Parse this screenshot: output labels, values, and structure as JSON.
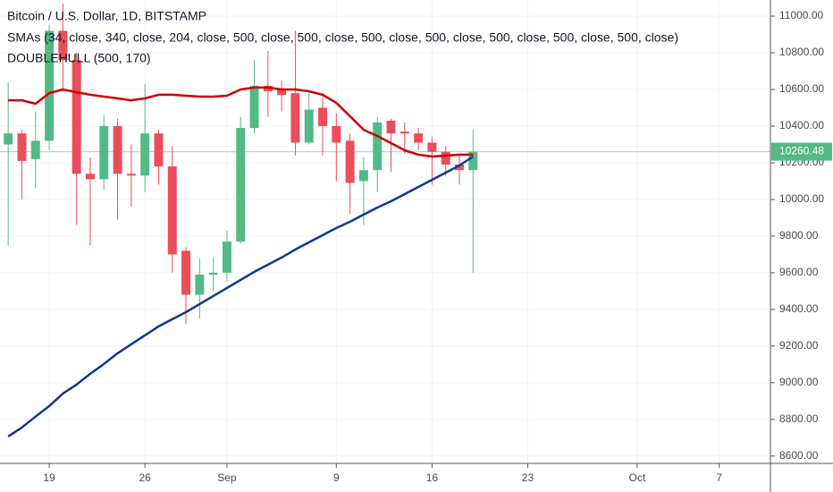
{
  "chart_data": {
    "type": "candlestick",
    "title": "Bitcoin / U.S. Dollar, 1D, BITSTAMP",
    "indicators": [
      "SMAs (34, close, 340, close, 204, close, 500, close, 500, close, 500, close, 500, close, 500, close, 500, close, 500, close)",
      "DOUBLEHULL (500, 170)"
    ],
    "x": [
      0,
      1,
      2,
      3,
      4,
      5,
      6,
      7,
      8,
      9,
      10,
      11,
      12,
      13,
      14,
      15,
      16,
      17,
      18,
      19,
      20,
      21,
      22,
      23,
      24,
      25,
      26,
      27,
      28,
      29,
      30,
      31,
      32,
      33,
      34
    ],
    "open": [
      10300,
      10360,
      10220,
      10320,
      10920,
      10760,
      10140,
      10110,
      10400,
      10140,
      10130,
      10360,
      10180,
      9720,
      9480,
      9590,
      9600,
      9770,
      10390,
      10620,
      10600,
      10580,
      10310,
      10500,
      10400,
      10320,
      10100,
      10160,
      10430,
      10370,
      10360,
      10310,
      10260,
      10190,
      10160
    ],
    "high": [
      10640,
      10380,
      10480,
      10950,
      11070,
      10800,
      10230,
      10460,
      10440,
      10300,
      10630,
      10380,
      10290,
      9740,
      9680,
      9680,
      9830,
      10450,
      10760,
      10810,
      10650,
      10920,
      10590,
      10580,
      10470,
      10360,
      10230,
      10450,
      10440,
      10420,
      10390,
      10340,
      10290,
      10240,
      10380
    ],
    "low": [
      9750,
      10000,
      10060,
      10270,
      10590,
      9860,
      9750,
      10050,
      9890,
      9960,
      10040,
      10080,
      9600,
      9320,
      9350,
      9500,
      9550,
      9760,
      10360,
      10450,
      10480,
      10240,
      10300,
      10240,
      10100,
      9920,
      9860,
      10040,
      10150,
      10250,
      10270,
      10080,
      10130,
      10080,
      9600
    ],
    "close": [
      10360,
      10210,
      10320,
      10920,
      10760,
      10140,
      10110,
      10400,
      10140,
      10130,
      10360,
      10180,
      9700,
      9480,
      9590,
      9600,
      9770,
      10390,
      10620,
      10590,
      10570,
      10310,
      10490,
      10400,
      10310,
      10090,
      10160,
      10420,
      10360,
      10360,
      10310,
      10260,
      10190,
      10160,
      10260.48
    ],
    "up_color": "#53b987",
    "down_color": "#eb4d5c",
    "series": [
      {
        "color": "#cc0000",
        "values": [
          10541,
          10541,
          10522,
          10580,
          10600,
          10585,
          10571,
          10561,
          10551,
          10541,
          10551,
          10571,
          10571,
          10566,
          10561,
          10561,
          10566,
          10600,
          10610,
          10610,
          10600,
          10600,
          10590,
          10571,
          10527,
          10454,
          10380,
          10346,
          10307,
          10268,
          10244,
          10234,
          10239,
          10244,
          10244
        ]
      },
      {
        "color": "#0d3a91",
        "values": [
          8707,
          8756,
          8815,
          8873,
          8941,
          8990,
          9049,
          9102,
          9161,
          9210,
          9259,
          9307,
          9346,
          9385,
          9429,
          9473,
          9517,
          9561,
          9605,
          9644,
          9683,
          9727,
          9766,
          9805,
          9844,
          9878,
          9917,
          9956,
          9990,
          10029,
          10068,
          10107,
          10146,
          10185,
          10234
        ]
      }
    ],
    "last_price": {
      "value": 10260.48,
      "label": "10260.48"
    },
    "xlim": [
      -0.6,
      55.75
    ],
    "xticks": [
      {
        "value": 3,
        "label": "19"
      },
      {
        "value": 10,
        "label": "26"
      },
      {
        "value": 16,
        "label": "Sep"
      },
      {
        "value": 24,
        "label": "9"
      },
      {
        "value": 31,
        "label": "16"
      },
      {
        "value": 38,
        "label": "23"
      },
      {
        "value": 46,
        "label": "Oct"
      },
      {
        "value": 52,
        "label": "7"
      }
    ],
    "ylim": [
      8560,
      11088
    ],
    "yticks": [
      {
        "value": 8600,
        "label": "8600.00"
      },
      {
        "value": 8800,
        "label": "8800.00"
      },
      {
        "value": 9000,
        "label": "9000.00"
      },
      {
        "value": 9200,
        "label": "9200.00"
      },
      {
        "value": 9400,
        "label": "9400.00"
      },
      {
        "value": 9600,
        "label": "9600.00"
      },
      {
        "value": 9800,
        "label": "9800.00"
      },
      {
        "value": 10000,
        "label": "10000.00"
      },
      {
        "value": 10200,
        "label": "10200.00"
      },
      {
        "value": 10400,
        "label": "10400.00"
      },
      {
        "value": 10600,
        "label": "10600.00"
      },
      {
        "value": 10800,
        "label": "10800.00"
      },
      {
        "value": 11000,
        "label": "11000.00"
      }
    ],
    "grid": true
  }
}
